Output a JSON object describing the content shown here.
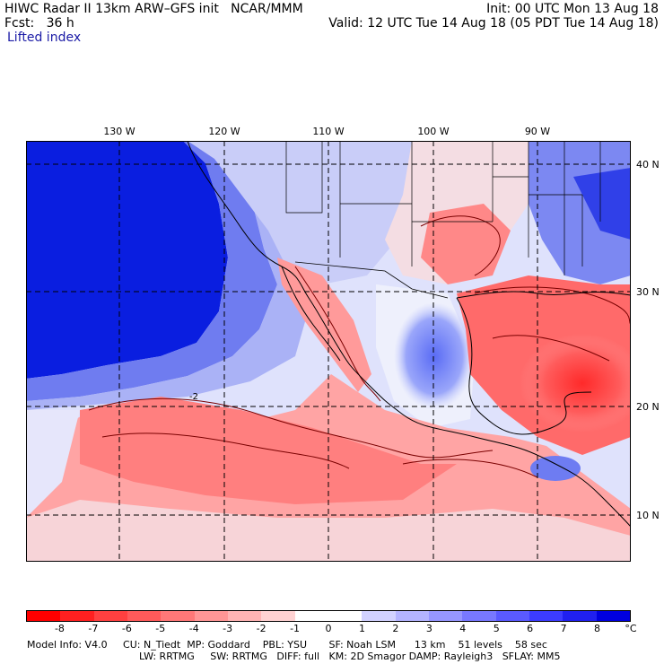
{
  "header": {
    "line1_left": "HIWC Radar II 13km ARW–GFS init   NCAR/MMM",
    "line1_right": "Init: 00 UTC Mon 13 Aug 18",
    "line2_left": "Fcst:   36 h",
    "line2_right": "Valid: 12 UTC Tue 14 Aug 18 (05 PDT Tue 14 Aug 18)",
    "field_name": "Lifted index"
  },
  "map": {
    "lon_labels": [
      "130 W",
      "120 W",
      "110 W",
      "100 W",
      "90 W"
    ],
    "lat_labels": [
      "40 N",
      "30 N",
      "20 N",
      "10 N"
    ],
    "contour_label": "-2",
    "colors": {
      "ocean_stable": "#0a1ee0",
      "land_neutral": "#f0e6ec",
      "unstable_red": "#ff3c3c",
      "coast": "#000000"
    }
  },
  "colorbar": {
    "labels": [
      "-8",
      "-7",
      "-6",
      "-5",
      "-4",
      "-3",
      "-2",
      "-1",
      "0",
      "1",
      "2",
      "3",
      "4",
      "5",
      "6",
      "7",
      "8"
    ],
    "unit": "°C",
    "colors": [
      "#ff0000",
      "#ff2020",
      "#ff4040",
      "#ff5a5a",
      "#ff7878",
      "#ff9696",
      "#ffb4b4",
      "#ffd2d2",
      "#ffffff",
      "#ffffff",
      "#d2d2ff",
      "#b4b4ff",
      "#9696ff",
      "#7878ff",
      "#5a5aff",
      "#3c3cff",
      "#2020f0",
      "#0000e0"
    ]
  },
  "footer": {
    "line1": "Model Info: V4.0     CU: N_Tiedt  MP: Goddard    PBL: YSU       SF: Noah LSM      13 km    51 levels    58 sec",
    "line2": "LW: RRTMG     SW: RRTMG   DIFF: full   KM: 2D Smagor DAMP: Rayleigh3   SFLAY: MM5"
  }
}
